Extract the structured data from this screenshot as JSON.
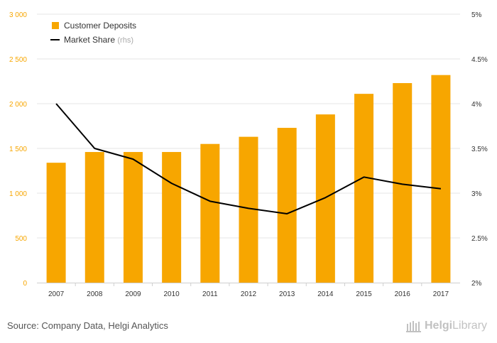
{
  "chart_data": {
    "type": "bar",
    "categories": [
      "2007",
      "2008",
      "2009",
      "2010",
      "2011",
      "2012",
      "2013",
      "2014",
      "2015",
      "2016",
      "2017"
    ],
    "series": [
      {
        "name": "Customer Deposits",
        "type": "bar",
        "axis": "left",
        "color": "#F7A600",
        "values": [
          1340,
          1460,
          1460,
          1460,
          1550,
          1630,
          1730,
          1880,
          2110,
          2230,
          2320
        ]
      },
      {
        "name": "Market Share",
        "legend_suffix": "(rhs)",
        "type": "line",
        "axis": "right",
        "color": "#000000",
        "values": [
          4.0,
          3.5,
          3.38,
          3.11,
          2.91,
          2.83,
          2.77,
          2.95,
          3.18,
          3.1,
          3.05
        ]
      }
    ],
    "yleft": {
      "min": 0,
      "max": 3000,
      "ticks": [
        "0",
        "500",
        "1 000",
        "1 500",
        "2 000",
        "2 500",
        "3 000"
      ],
      "color": "#F7A600"
    },
    "yright": {
      "min": 2,
      "max": 5,
      "ticks": [
        "2%",
        "2.5%",
        "3%",
        "3.5%",
        "4%",
        "4.5%",
        "5%"
      ]
    },
    "grid": true,
    "legend_position": "top-left"
  },
  "footer": {
    "source": "Source: Company Data, Helgi Analytics",
    "logo_brand": "Helgi",
    "logo_suffix": "Library"
  }
}
